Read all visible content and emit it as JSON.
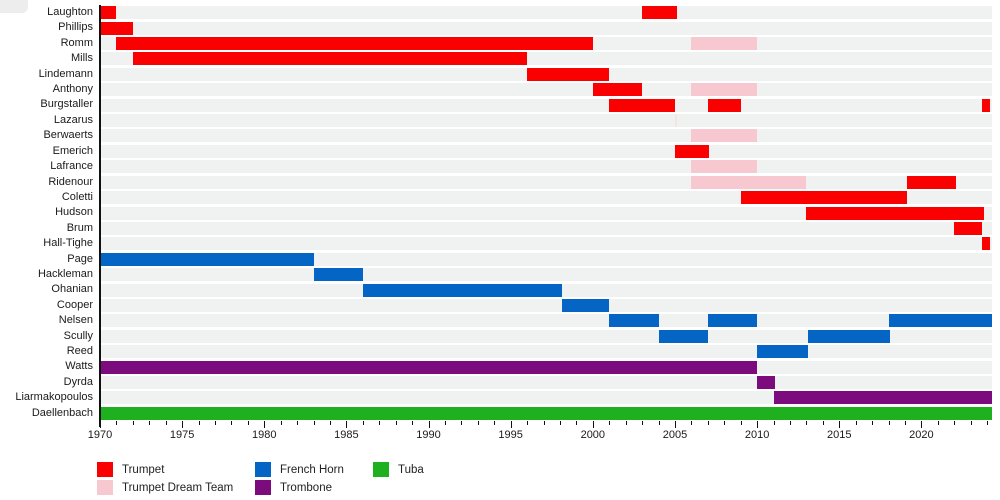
{
  "chart_data": {
    "type": "bar",
    "subtype": "gantt-membership-timeline",
    "x_domain": {
      "min": 1970,
      "max": 2024.3
    },
    "x_tick_interval": 1,
    "x_label_years": [
      1970,
      1975,
      1980,
      1985,
      1990,
      1995,
      2000,
      2005,
      2010,
      2015,
      2020
    ],
    "grid": "row-stripes",
    "legend_position": "bottom",
    "colors": {
      "trumpet": "#fa0000",
      "dream": "#f8c8d0",
      "horn": "#0565c5",
      "trombone": "#7c0b7e",
      "tuba": "#1eb01e",
      "brief": "#f6e4e4",
      "stripe": "#f0f1f1",
      "axis": "#111111"
    },
    "legend": [
      {
        "key": "trumpet",
        "label": "Trumpet"
      },
      {
        "key": "dream",
        "label": "Trumpet Dream Team"
      },
      {
        "key": "horn",
        "label": "French Horn"
      },
      {
        "key": "trombone",
        "label": "Trombone"
      },
      {
        "key": "tuba",
        "label": "Tuba"
      }
    ],
    "rows": [
      {
        "name": "Laughton",
        "segments": [
          {
            "start": 1970,
            "end": 1971,
            "type": "trumpet"
          },
          {
            "start": 2003,
            "end": 2005.1,
            "type": "trumpet"
          }
        ]
      },
      {
        "name": "Phillips",
        "segments": [
          {
            "start": 1970,
            "end": 1972,
            "type": "trumpet"
          }
        ]
      },
      {
        "name": "Romm",
        "segments": [
          {
            "start": 1971,
            "end": 2000,
            "type": "trumpet"
          },
          {
            "start": 2006,
            "end": 2010,
            "type": "dream"
          }
        ]
      },
      {
        "name": "Mills",
        "segments": [
          {
            "start": 1972,
            "end": 1996,
            "type": "trumpet"
          }
        ]
      },
      {
        "name": "Lindemann",
        "segments": [
          {
            "start": 1996,
            "end": 2001,
            "type": "trumpet"
          }
        ]
      },
      {
        "name": "Anthony",
        "segments": [
          {
            "start": 2000,
            "end": 2003,
            "type": "trumpet"
          },
          {
            "start": 2006,
            "end": 2010,
            "type": "dream"
          }
        ]
      },
      {
        "name": "Burgstaller",
        "segments": [
          {
            "start": 2001,
            "end": 2005,
            "type": "trumpet"
          },
          {
            "start": 2007,
            "end": 2009,
            "type": "trumpet"
          },
          {
            "start": 2023.7,
            "end": 2024.2,
            "type": "trumpet"
          }
        ]
      },
      {
        "name": "Lazarus",
        "segments": [
          {
            "start": 2005,
            "end": 2005.15,
            "type": "brief"
          }
        ]
      },
      {
        "name": "Berwaerts",
        "segments": [
          {
            "start": 2006,
            "end": 2010,
            "type": "dream"
          }
        ]
      },
      {
        "name": "Emerich",
        "segments": [
          {
            "start": 2005,
            "end": 2007.1,
            "type": "trumpet"
          }
        ]
      },
      {
        "name": "Lafrance",
        "segments": [
          {
            "start": 2006,
            "end": 2010,
            "type": "dream"
          }
        ]
      },
      {
        "name": "Ridenour",
        "segments": [
          {
            "start": 2006,
            "end": 2013,
            "type": "dream"
          },
          {
            "start": 2019.1,
            "end": 2022.1,
            "type": "trumpet"
          }
        ]
      },
      {
        "name": "Coletti",
        "segments": [
          {
            "start": 2009,
            "end": 2019.1,
            "type": "trumpet"
          }
        ]
      },
      {
        "name": "Hudson",
        "segments": [
          {
            "start": 2013,
            "end": 2023.8,
            "type": "trumpet"
          }
        ]
      },
      {
        "name": "Brum",
        "segments": [
          {
            "start": 2022,
            "end": 2023.7,
            "type": "trumpet"
          }
        ]
      },
      {
        "name": "Hall-Tighe",
        "segments": [
          {
            "start": 2023.7,
            "end": 2024.2,
            "type": "trumpet"
          }
        ]
      },
      {
        "name": "Page",
        "segments": [
          {
            "start": 1970,
            "end": 1983,
            "type": "horn"
          }
        ]
      },
      {
        "name": "Hackleman",
        "segments": [
          {
            "start": 1983,
            "end": 1986,
            "type": "horn"
          }
        ]
      },
      {
        "name": "Ohanian",
        "segments": [
          {
            "start": 1986,
            "end": 1998.1,
            "type": "horn"
          }
        ]
      },
      {
        "name": "Cooper",
        "segments": [
          {
            "start": 1998.1,
            "end": 2001,
            "type": "horn"
          }
        ]
      },
      {
        "name": "Nelsen",
        "segments": [
          {
            "start": 2001,
            "end": 2004,
            "type": "horn"
          },
          {
            "start": 2007,
            "end": 2010,
            "type": "horn"
          },
          {
            "start": 2018,
            "end": 2024.3,
            "type": "horn"
          }
        ]
      },
      {
        "name": "Scully",
        "segments": [
          {
            "start": 2004,
            "end": 2007,
            "type": "horn"
          },
          {
            "start": 2013.1,
            "end": 2018.1,
            "type": "horn"
          }
        ]
      },
      {
        "name": "Reed",
        "segments": [
          {
            "start": 2010,
            "end": 2013.1,
            "type": "horn"
          }
        ]
      },
      {
        "name": "Watts",
        "segments": [
          {
            "start": 1970,
            "end": 2010,
            "type": "trombone"
          }
        ]
      },
      {
        "name": "Dyrda",
        "segments": [
          {
            "start": 2010,
            "end": 2011.1,
            "type": "trombone"
          }
        ]
      },
      {
        "name": "Liarmakopoulos",
        "segments": [
          {
            "start": 2011,
            "end": 2024.3,
            "type": "trombone"
          }
        ]
      },
      {
        "name": "Daellenbach",
        "segments": [
          {
            "start": 1970,
            "end": 2024.3,
            "type": "tuba"
          }
        ]
      }
    ]
  }
}
